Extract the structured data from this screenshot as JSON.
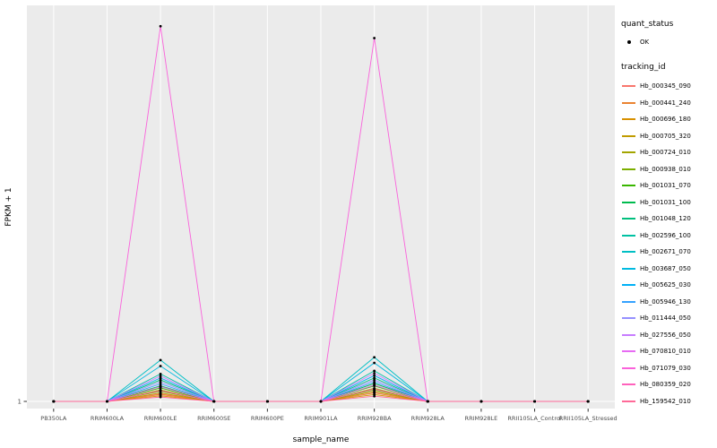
{
  "legend": {
    "quant_status_title": "quant_status",
    "quant_status_items": [
      "OK"
    ],
    "tracking_id_title": "tracking_id"
  },
  "chart_data": {
    "type": "line",
    "title": "",
    "xlabel": "sample_name",
    "ylabel": "FPKM + 1",
    "y_ticks": [
      "1"
    ],
    "ylim": [
      1,
      950
    ],
    "grid": true,
    "panel_background": "#EBEBEB",
    "gridline_color": "#FFFFFF",
    "point_color": "#000000",
    "tick_color": "#333333",
    "tick_label_color": "#4D4D4D",
    "legend_position": "right",
    "quant_status": "OK",
    "categories": [
      "PB350LA",
      "RRIM600LA",
      "RRIM600LE",
      "RRIM600SE",
      "RRIM600PE",
      "RRIM901LA",
      "RRIM928BA",
      "RRIM928LA",
      "RRIM928LE",
      "RRII105LA_Control",
      "RRII105LA_Stressed"
    ],
    "series": [
      {
        "name": "Hb_000345_090",
        "color": "#F8766D",
        "values": [
          1,
          1,
          20,
          1,
          1,
          1,
          25,
          1,
          1,
          1,
          1
        ]
      },
      {
        "name": "Hb_000441_240",
        "color": "#EA8331",
        "values": [
          1,
          1,
          18,
          1,
          1,
          1,
          22,
          1,
          1,
          1,
          1
        ]
      },
      {
        "name": "Hb_000696_180",
        "color": "#D89000",
        "values": [
          1,
          1,
          15,
          1,
          1,
          1,
          18,
          1,
          1,
          1,
          1
        ]
      },
      {
        "name": "Hb_000705_320",
        "color": "#C09B00",
        "values": [
          1,
          1,
          22,
          1,
          1,
          1,
          26,
          1,
          1,
          1,
          1
        ]
      },
      {
        "name": "Hb_000724_010",
        "color": "#A3A500",
        "values": [
          1,
          1,
          30,
          1,
          1,
          1,
          34,
          1,
          1,
          1,
          1
        ]
      },
      {
        "name": "Hb_000938_010",
        "color": "#7CAE00",
        "values": [
          1,
          1,
          26,
          1,
          1,
          1,
          30,
          1,
          1,
          1,
          1
        ]
      },
      {
        "name": "Hb_001031_070",
        "color": "#39B600",
        "values": [
          1,
          1,
          35,
          1,
          1,
          1,
          40,
          1,
          1,
          1,
          1
        ]
      },
      {
        "name": "Hb_001031_100",
        "color": "#00BB4E",
        "values": [
          1,
          1,
          40,
          1,
          1,
          1,
          46,
          1,
          1,
          1,
          1
        ]
      },
      {
        "name": "Hb_001048_120",
        "color": "#00BF7D",
        "values": [
          1,
          1,
          55,
          1,
          1,
          1,
          60,
          1,
          1,
          1,
          1
        ]
      },
      {
        "name": "Hb_002596_100",
        "color": "#00C1A3",
        "values": [
          1,
          1,
          70,
          1,
          1,
          1,
          78,
          1,
          1,
          1,
          1
        ]
      },
      {
        "name": "Hb_002671_070",
        "color": "#00BFC4",
        "values": [
          1,
          1,
          105,
          1,
          1,
          1,
          112,
          1,
          1,
          1,
          1
        ]
      },
      {
        "name": "Hb_003687_050",
        "color": "#00BAE0",
        "values": [
          1,
          1,
          90,
          1,
          1,
          1,
          98,
          1,
          1,
          1,
          1
        ]
      },
      {
        "name": "Hb_005625_030",
        "color": "#00B0F6",
        "values": [
          1,
          1,
          60,
          1,
          1,
          1,
          66,
          1,
          1,
          1,
          1
        ]
      },
      {
        "name": "Hb_005946_130",
        "color": "#35A2FF",
        "values": [
          1,
          1,
          45,
          1,
          1,
          1,
          50,
          1,
          1,
          1,
          1
        ]
      },
      {
        "name": "Hb_011444_050",
        "color": "#9590FF",
        "values": [
          1,
          1,
          50,
          1,
          1,
          1,
          55,
          1,
          1,
          1,
          1
        ]
      },
      {
        "name": "Hb_027556_050",
        "color": "#C77CFF",
        "values": [
          1,
          1,
          65,
          1,
          1,
          1,
          72,
          1,
          1,
          1,
          1
        ]
      },
      {
        "name": "Hb_070810_010",
        "color": "#E76BF3",
        "values": [
          1,
          1,
          38,
          1,
          1,
          1,
          42,
          1,
          1,
          1,
          1
        ]
      },
      {
        "name": "Hb_071079_030",
        "color": "#FA62DB",
        "values": [
          1,
          1,
          945,
          1,
          1,
          1,
          915,
          1,
          1,
          1,
          1
        ]
      },
      {
        "name": "Hb_080359_020",
        "color": "#FF62BC",
        "values": [
          1,
          1,
          28,
          1,
          1,
          1,
          32,
          1,
          1,
          1,
          1
        ]
      },
      {
        "name": "Hb_159542_010",
        "color": "#FF6A98",
        "values": [
          1,
          1,
          12,
          1,
          1,
          1,
          14,
          1,
          1,
          1,
          1
        ]
      }
    ]
  }
}
